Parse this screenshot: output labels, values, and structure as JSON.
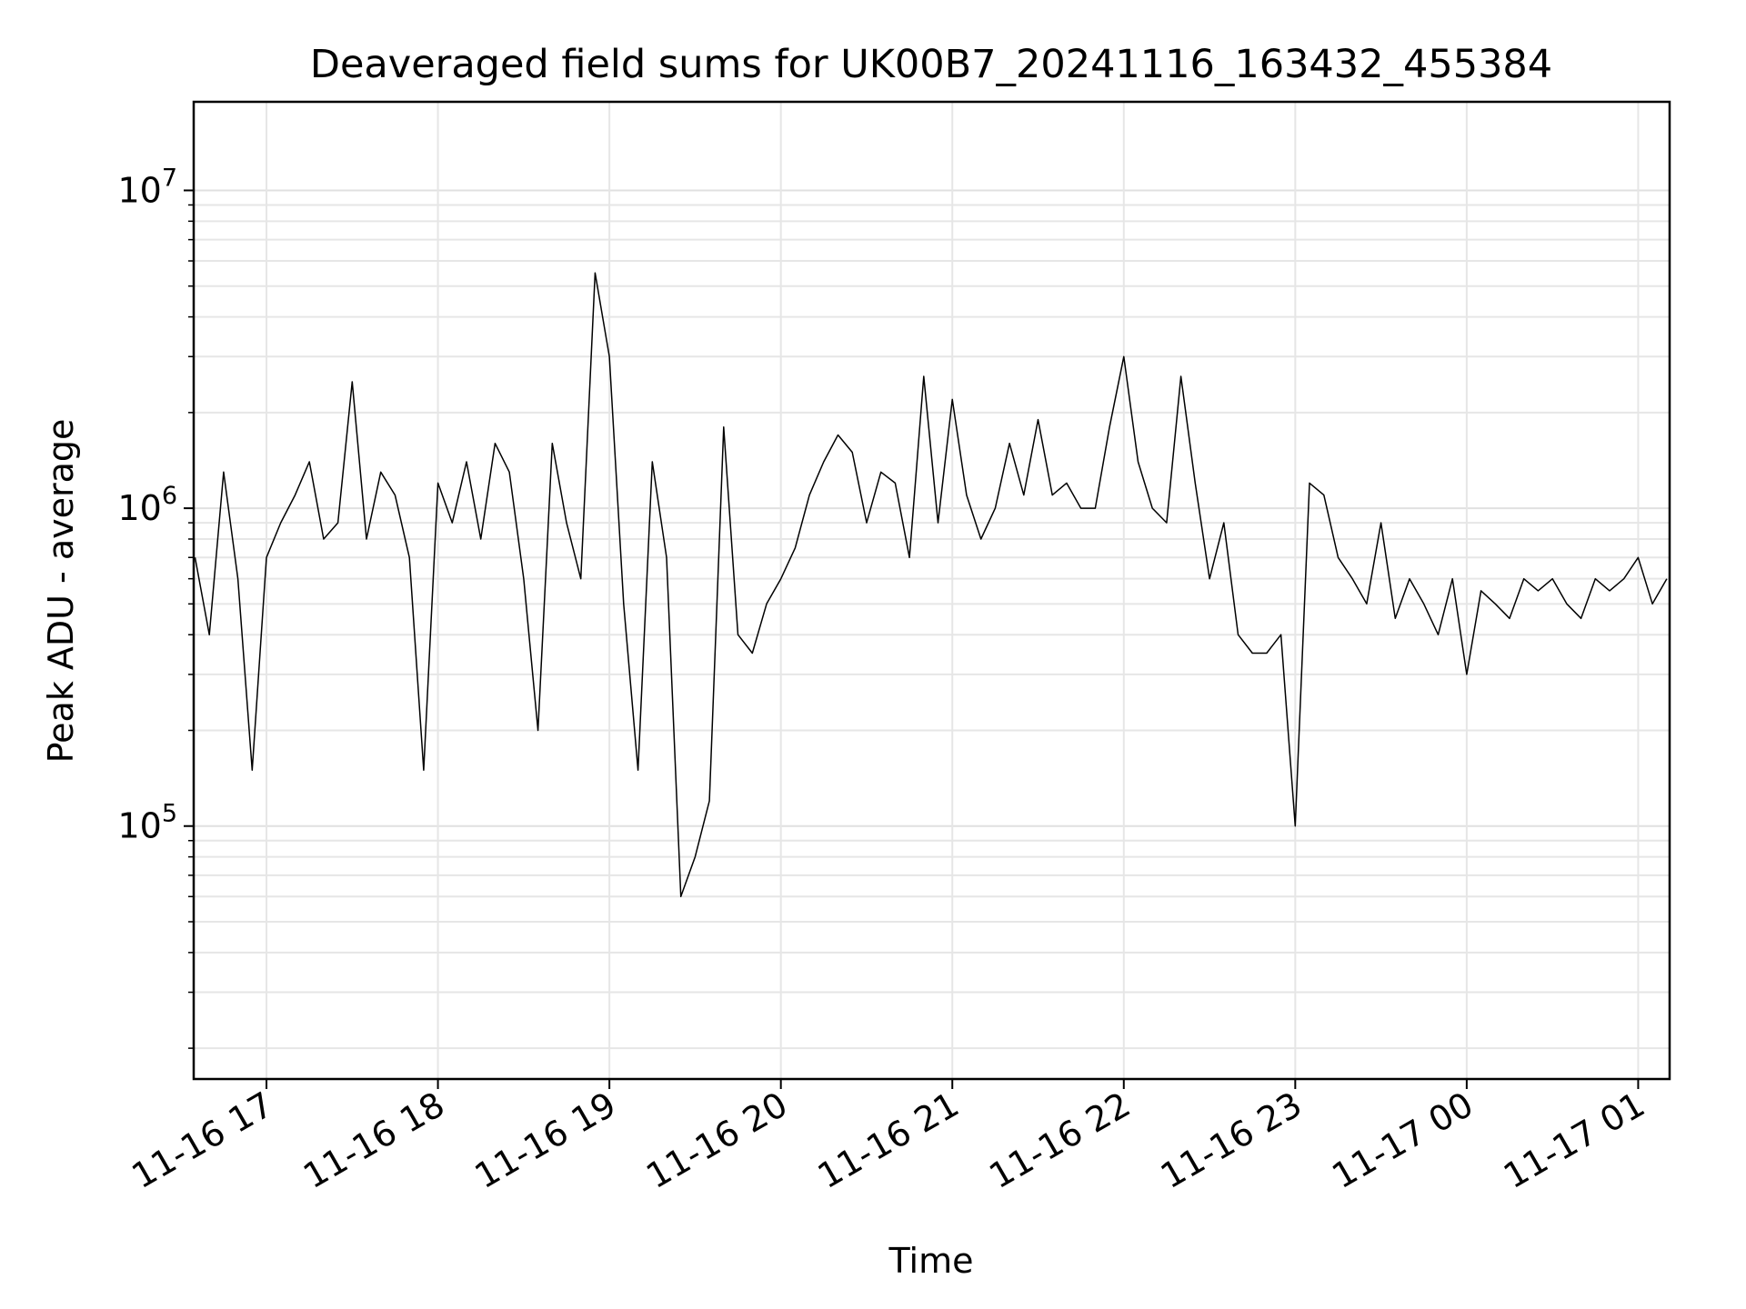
{
  "chart_data": {
    "type": "line",
    "title": "Deaveraged field sums for UK00B7_20241116_163432_455384",
    "xlabel": "Time",
    "ylabel": "Peak ADU - average",
    "yscale": "log",
    "grid": true,
    "xlim": [
      "2024-11-16T16:34:32",
      "2024-11-17T01:11:00"
    ],
    "ylim": [
      16000,
      19000000
    ],
    "x_ticks": [
      {
        "t": "2024-11-16T17:00",
        "label": "11-16 17"
      },
      {
        "t": "2024-11-16T18:00",
        "label": "11-16 18"
      },
      {
        "t": "2024-11-16T19:00",
        "label": "11-16 19"
      },
      {
        "t": "2024-11-16T20:00",
        "label": "11-16 20"
      },
      {
        "t": "2024-11-16T21:00",
        "label": "11-16 21"
      },
      {
        "t": "2024-11-16T22:00",
        "label": "11-16 22"
      },
      {
        "t": "2024-11-16T23:00",
        "label": "11-16 23"
      },
      {
        "t": "2024-11-17T00:00",
        "label": "11-17 00"
      },
      {
        "t": "2024-11-17T01:00",
        "label": "11-17 01"
      }
    ],
    "y_ticks": [
      {
        "value": 100000,
        "base": "10",
        "exp": "5"
      },
      {
        "value": 1000000,
        "base": "10",
        "exp": "6"
      },
      {
        "value": 10000000,
        "base": "10",
        "exp": "7"
      }
    ],
    "series": [
      {
        "color": "#000000",
        "x": [
          "2024-11-16T16:35",
          "2024-11-16T16:40",
          "2024-11-16T16:45",
          "2024-11-16T16:50",
          "2024-11-16T16:55",
          "2024-11-16T17:00",
          "2024-11-16T17:05",
          "2024-11-16T17:10",
          "2024-11-16T17:15",
          "2024-11-16T17:20",
          "2024-11-16T17:25",
          "2024-11-16T17:30",
          "2024-11-16T17:35",
          "2024-11-16T17:40",
          "2024-11-16T17:45",
          "2024-11-16T17:50",
          "2024-11-16T17:55",
          "2024-11-16T18:00",
          "2024-11-16T18:05",
          "2024-11-16T18:10",
          "2024-11-16T18:15",
          "2024-11-16T18:20",
          "2024-11-16T18:25",
          "2024-11-16T18:30",
          "2024-11-16T18:35",
          "2024-11-16T18:40",
          "2024-11-16T18:45",
          "2024-11-16T18:50",
          "2024-11-16T18:55",
          "2024-11-16T19:00",
          "2024-11-16T19:05",
          "2024-11-16T19:10",
          "2024-11-16T19:15",
          "2024-11-16T19:20",
          "2024-11-16T19:25",
          "2024-11-16T19:30",
          "2024-11-16T19:35",
          "2024-11-16T19:40",
          "2024-11-16T19:45",
          "2024-11-16T19:50",
          "2024-11-16T19:55",
          "2024-11-16T20:00",
          "2024-11-16T20:05",
          "2024-11-16T20:10",
          "2024-11-16T20:15",
          "2024-11-16T20:20",
          "2024-11-16T20:25",
          "2024-11-16T20:30",
          "2024-11-16T20:35",
          "2024-11-16T20:40",
          "2024-11-16T20:45",
          "2024-11-16T20:50",
          "2024-11-16T20:55",
          "2024-11-16T21:00",
          "2024-11-16T21:05",
          "2024-11-16T21:10",
          "2024-11-16T21:15",
          "2024-11-16T21:20",
          "2024-11-16T21:25",
          "2024-11-16T21:30",
          "2024-11-16T21:35",
          "2024-11-16T21:40",
          "2024-11-16T21:45",
          "2024-11-16T21:50",
          "2024-11-16T21:55",
          "2024-11-16T22:00",
          "2024-11-16T22:05",
          "2024-11-16T22:10",
          "2024-11-16T22:15",
          "2024-11-16T22:20",
          "2024-11-16T22:25",
          "2024-11-16T22:30",
          "2024-11-16T22:35",
          "2024-11-16T22:40",
          "2024-11-16T22:45",
          "2024-11-16T22:50",
          "2024-11-16T22:55",
          "2024-11-16T23:00",
          "2024-11-16T23:05",
          "2024-11-16T23:10",
          "2024-11-16T23:15",
          "2024-11-16T23:20",
          "2024-11-16T23:25",
          "2024-11-16T23:30",
          "2024-11-16T23:35",
          "2024-11-16T23:40",
          "2024-11-16T23:45",
          "2024-11-16T23:50",
          "2024-11-16T23:55",
          "2024-11-17T00:00",
          "2024-11-17T00:05",
          "2024-11-17T00:10",
          "2024-11-17T00:15",
          "2024-11-17T00:20",
          "2024-11-17T00:25",
          "2024-11-17T00:30",
          "2024-11-17T00:35",
          "2024-11-17T00:40",
          "2024-11-17T00:45",
          "2024-11-17T00:50",
          "2024-11-17T00:55",
          "2024-11-17T01:00",
          "2024-11-17T01:05",
          "2024-11-17T01:10"
        ],
        "values": [
          700000,
          400000,
          1300000,
          600000,
          150000,
          700000,
          900000,
          1100000,
          1400000,
          800000,
          900000,
          2500000,
          800000,
          1300000,
          1100000,
          700000,
          150000,
          1200000,
          900000,
          1400000,
          800000,
          1600000,
          1300000,
          600000,
          200000,
          1600000,
          900000,
          600000,
          5500000,
          3000000,
          500000,
          150000,
          1400000,
          700000,
          60000,
          80000,
          120000,
          1800000,
          400000,
          350000,
          500000,
          600000,
          750000,
          1100000,
          1400000,
          1700000,
          1500000,
          900000,
          1300000,
          1200000,
          700000,
          2600000,
          900000,
          2200000,
          1100000,
          800000,
          1000000,
          1600000,
          1100000,
          1900000,
          1100000,
          1200000,
          1000000,
          1000000,
          1800000,
          3000000,
          1400000,
          1000000,
          900000,
          2600000,
          1200000,
          600000,
          900000,
          400000,
          350000,
          350000,
          400000,
          100000,
          1200000,
          1100000,
          700000,
          600000,
          500000,
          900000,
          450000,
          600000,
          500000,
          400000,
          600000,
          300000,
          550000,
          500000,
          450000,
          600000,
          550000,
          600000,
          500000,
          450000,
          600000,
          550000,
          600000,
          700000,
          500000,
          600000
        ]
      }
    ]
  }
}
